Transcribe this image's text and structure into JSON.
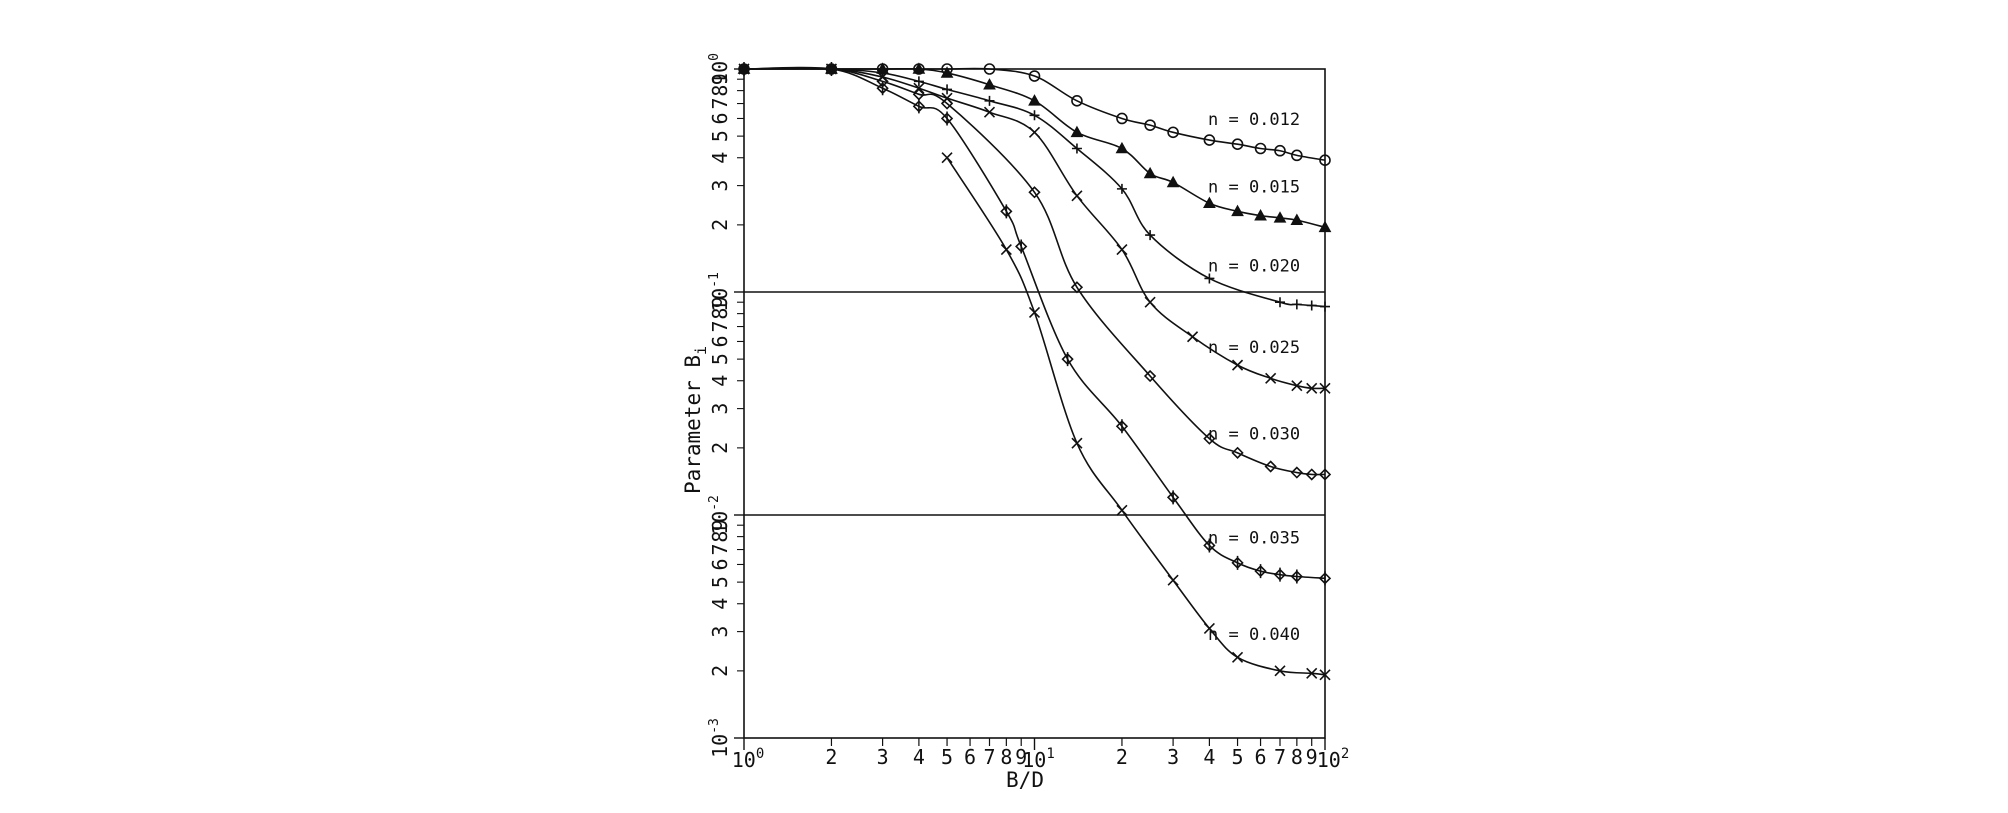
{
  "chart_data": {
    "type": "line",
    "xlabel": "B/D",
    "ylabel": "Parameter B",
    "ylabel_subscript": "i",
    "xscale": "log",
    "yscale": "log",
    "xlim": [
      1,
      100
    ],
    "ylim": [
      0.001,
      1
    ],
    "grid": "horizontal lines at decades",
    "x_decade_labels": [
      "10",
      "10",
      "10"
    ],
    "x_decade_exponents": [
      "0",
      "1",
      "2"
    ],
    "x_minor_labels": [
      {
        "x": 2,
        "label": "2"
      },
      {
        "x": 3,
        "label": "3"
      },
      {
        "x": 4,
        "label": "4"
      },
      {
        "x": 5,
        "label": "5"
      },
      {
        "x": 6,
        "label": "6"
      },
      {
        "x": 7,
        "label": "7"
      },
      {
        "x": 8,
        "label": "8"
      },
      {
        "x": 9,
        "label": "9"
      },
      {
        "x": 20,
        "label": "2"
      },
      {
        "x": 30,
        "label": "3"
      },
      {
        "x": 40,
        "label": "4"
      },
      {
        "x": 50,
        "label": "5"
      },
      {
        "x": 60,
        "label": "6"
      },
      {
        "x": 70,
        "label": "7"
      },
      {
        "x": 80,
        "label": "8"
      },
      {
        "x": 90,
        "label": "9"
      }
    ],
    "y_decade_labels": [
      {
        "y": 1,
        "base": "10",
        "exp": "0"
      },
      {
        "y": 0.1,
        "base": "10",
        "exp": "-1"
      },
      {
        "y": 0.01,
        "base": "10",
        "exp": "-2"
      },
      {
        "y": 0.001,
        "base": "10",
        "exp": "-3"
      }
    ],
    "y_minor_digits": [
      "2",
      "3",
      "4",
      "5",
      "6",
      "7",
      "8",
      "9"
    ],
    "series": [
      {
        "name": "n = 0.012",
        "marker": "circle",
        "x": [
          1,
          2,
          3,
          4,
          5,
          7,
          10,
          14,
          20,
          25,
          30,
          40,
          50,
          60,
          70,
          80,
          100
        ],
        "y": [
          1.0,
          1.0,
          1.0,
          1.0,
          1.0,
          1.0,
          0.93,
          0.72,
          0.6,
          0.56,
          0.52,
          0.48,
          0.46,
          0.44,
          0.43,
          0.41,
          0.39
        ]
      },
      {
        "name": "n = 0.015",
        "marker": "triangle",
        "x": [
          1,
          2,
          3,
          4,
          5,
          7,
          10,
          14,
          20,
          25,
          30,
          40,
          50,
          60,
          70,
          80,
          100
        ],
        "y": [
          1.0,
          1.0,
          1.0,
          1.0,
          0.96,
          0.85,
          0.72,
          0.52,
          0.44,
          0.34,
          0.31,
          0.25,
          0.23,
          0.22,
          0.215,
          0.21,
          0.195
        ]
      },
      {
        "name": "n = 0.020",
        "marker": "plus",
        "x": [
          1,
          2,
          3,
          4,
          5,
          7,
          10,
          14,
          20,
          25,
          40,
          70,
          80,
          90,
          100
        ],
        "y": [
          1.0,
          1.0,
          0.96,
          0.88,
          0.81,
          0.72,
          0.62,
          0.44,
          0.29,
          0.18,
          0.115,
          0.09,
          0.088,
          0.087,
          0.086
        ]
      },
      {
        "name": "n = 0.025",
        "marker": "x",
        "x": [
          1,
          2,
          3,
          4,
          5,
          7,
          10,
          14,
          20,
          25,
          35,
          50,
          65,
          80,
          90,
          100
        ],
        "y": [
          1.0,
          1.0,
          0.92,
          0.82,
          0.74,
          0.64,
          0.52,
          0.27,
          0.155,
          0.09,
          0.063,
          0.047,
          0.041,
          0.038,
          0.037,
          0.037
        ]
      },
      {
        "name": "n = 0.030",
        "marker": "diamond",
        "x": [
          1,
          2,
          3,
          4,
          5,
          10,
          14,
          25,
          40,
          50,
          65,
          80,
          90,
          100
        ],
        "y": [
          1.0,
          1.0,
          0.88,
          0.77,
          0.7,
          0.28,
          0.105,
          0.042,
          0.022,
          0.019,
          0.0165,
          0.0155,
          0.0152,
          0.0152
        ]
      },
      {
        "name": "n = 0.035",
        "marker": "diamond-plus",
        "x": [
          1,
          2,
          3,
          4,
          5,
          8,
          9,
          13,
          20,
          30,
          40,
          50,
          60,
          70,
          80,
          100
        ],
        "y": [
          1.0,
          1.0,
          0.82,
          0.68,
          0.6,
          0.23,
          0.16,
          0.05,
          0.025,
          0.012,
          0.0073,
          0.0061,
          0.0056,
          0.0054,
          0.0053,
          0.0052
        ]
      },
      {
        "name": "n = 0.040",
        "marker": "x",
        "x": [
          5,
          8,
          10,
          14,
          20,
          30,
          40,
          50,
          70,
          90,
          100
        ],
        "y": [
          0.4,
          0.155,
          0.081,
          0.021,
          0.0105,
          0.0051,
          0.0031,
          0.0023,
          0.002,
          0.00195,
          0.00192
        ]
      }
    ]
  }
}
